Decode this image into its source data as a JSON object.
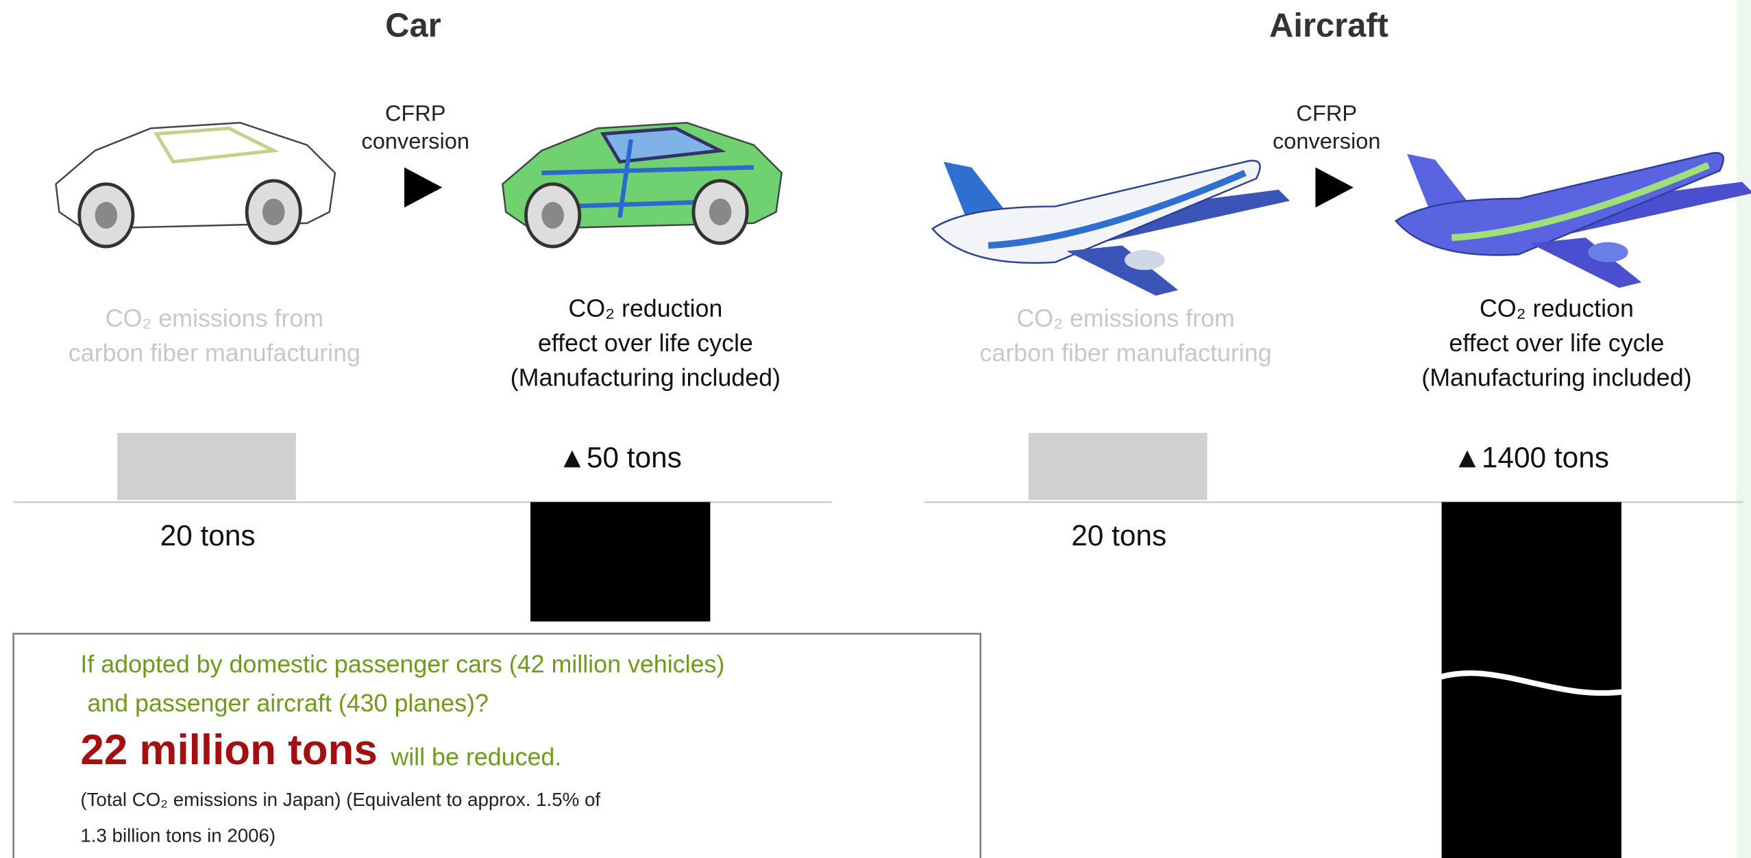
{
  "panels": [
    {
      "title": "Car",
      "conversion": [
        "CFRP",
        "conversion"
      ],
      "manufacturing_label": [
        "CO₂ emissions from",
        "carbon fiber manufacturing"
      ],
      "reduction_label": [
        "CO₂ reduction",
        "effect over life cycle",
        "(Manufacturing included)"
      ],
      "manufacturing_value": "20 tons",
      "reduction_value": "▲50 tons"
    },
    {
      "title": "Aircraft",
      "conversion": [
        "CFRP",
        "conversion"
      ],
      "manufacturing_label": [
        "CO₂ emissions from",
        "carbon fiber manufacturing"
      ],
      "reduction_label": [
        "CO₂ reduction",
        "effect over life cycle",
        "(Manufacturing included)"
      ],
      "manufacturing_value": "20 tons",
      "reduction_value": "▲1400 tons"
    }
  ],
  "note": {
    "question": [
      "If adopted by domestic passenger cars (42 million vehicles)",
      " and passenger aircraft (430 planes)?"
    ],
    "highlight": "22 million tons",
    "highlight_suffix": "will be reduced.",
    "footnote": [
      "(Total CO₂ emissions in Japan) (Equivalent to approx. 1.5% of",
      "1.3 billion tons in 2006)"
    ]
  }
}
